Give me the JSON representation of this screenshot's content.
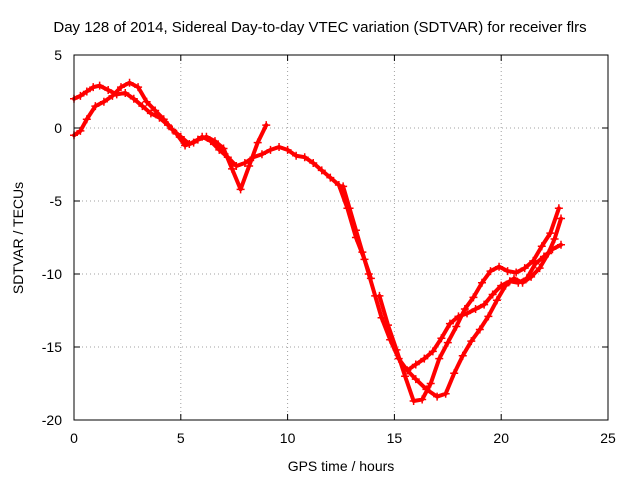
{
  "chart_data": {
    "type": "scatter",
    "title": "Day 128 of 2014, Sidereal Day-to-day VTEC variation (SDTVAR) for receiver flrs",
    "xlabel": "GPS time / hours",
    "ylabel": "SDTVAR / TECUs",
    "xlim": [
      0,
      25
    ],
    "ylim": [
      -20,
      5
    ],
    "xticks": [
      0,
      5,
      10,
      15,
      20,
      25
    ],
    "yticks": [
      5,
      0,
      -5,
      -10,
      -15,
      -20
    ],
    "grid": true,
    "marker": "+",
    "series": [
      {
        "name": "SDTVAR track A",
        "color": "#ff0000",
        "x": [
          0.0,
          0.3,
          0.6,
          0.9,
          1.2,
          1.6,
          2.0,
          2.4,
          2.8,
          3.2,
          3.6,
          4.0,
          4.4,
          4.8,
          5.2,
          5.6,
          6.0,
          6.4,
          6.8,
          7.2,
          7.6,
          8.0,
          8.4,
          8.8,
          9.2,
          9.6,
          10.0,
          10.4,
          10.8,
          11.2,
          11.6,
          12.0,
          12.4,
          12.8,
          13.2,
          13.6,
          13.9
        ],
        "y": [
          2.0,
          2.2,
          2.5,
          2.8,
          2.9,
          2.6,
          2.3,
          2.4,
          2.0,
          1.5,
          1.0,
          0.7,
          0.2,
          -0.4,
          -1.2,
          -1.0,
          -0.6,
          -0.9,
          -1.5,
          -2.0,
          -2.6,
          -2.4,
          -2.0,
          -1.8,
          -1.5,
          -1.3,
          -1.5,
          -1.9,
          -2.0,
          -2.4,
          -2.9,
          -3.4,
          -3.9,
          -5.5,
          -7.5,
          -9.0,
          -10.3
        ]
      },
      {
        "name": "SDTVAR track B",
        "color": "#ff0000",
        "x": [
          0.0,
          0.3,
          0.6,
          1.0,
          1.4,
          1.8,
          2.2,
          2.6,
          3.0,
          3.4,
          3.8,
          4.2,
          4.6,
          5.0,
          5.4,
          5.8,
          6.2,
          6.6,
          7.0,
          7.4,
          7.8,
          8.2,
          8.6,
          9.0
        ],
        "y": [
          -0.5,
          -0.2,
          0.6,
          1.5,
          1.8,
          2.2,
          2.8,
          3.1,
          2.8,
          1.8,
          1.2,
          0.6,
          -0.1,
          -0.6,
          -1.1,
          -0.8,
          -0.6,
          -0.9,
          -1.4,
          -2.8,
          -4.2,
          -2.6,
          -1.0,
          0.2
        ]
      },
      {
        "name": "SDTVAR track C",
        "color": "#ff0000",
        "x": [
          12.6,
          12.9,
          13.2,
          13.5,
          13.8,
          14.1,
          14.4,
          14.8,
          15.2,
          15.6,
          16.0,
          16.5,
          17.0,
          17.4,
          17.8,
          18.2,
          18.6,
          19.0,
          19.4,
          19.8,
          20.2,
          20.6,
          21.0,
          21.4,
          21.8,
          22.2,
          22.5,
          22.8
        ],
        "y": [
          -4.0,
          -5.5,
          -7.0,
          -8.5,
          -10.0,
          -11.5,
          -13.0,
          -14.5,
          -15.8,
          -16.6,
          -17.2,
          -17.9,
          -18.4,
          -18.2,
          -16.8,
          -15.6,
          -14.6,
          -13.8,
          -12.9,
          -11.8,
          -10.8,
          -10.3,
          -10.6,
          -10.2,
          -9.6,
          -8.6,
          -7.6,
          -6.2
        ]
      },
      {
        "name": "SDTVAR track D",
        "color": "#ff0000",
        "x": [
          14.3,
          14.7,
          15.1,
          15.5,
          15.9,
          16.3,
          16.7,
          17.1,
          17.5,
          17.9,
          18.3,
          18.7,
          19.1,
          19.5,
          19.9,
          20.3,
          20.7,
          21.1,
          21.5,
          21.9,
          22.3,
          22.7
        ],
        "y": [
          -11.5,
          -13.5,
          -15.2,
          -17.0,
          -18.7,
          -18.6,
          -17.5,
          -15.8,
          -14.7,
          -13.6,
          -12.4,
          -11.6,
          -10.6,
          -9.8,
          -9.5,
          -9.8,
          -9.9,
          -9.6,
          -9.1,
          -8.1,
          -7.2,
          -5.5
        ]
      },
      {
        "name": "SDTVAR track E",
        "color": "#ff0000",
        "x": [
          15.6,
          16.0,
          16.4,
          16.8,
          17.2,
          17.6,
          18.0,
          18.4,
          18.8,
          19.2,
          19.6,
          20.0,
          20.4,
          20.8,
          21.2,
          21.6,
          22.0,
          22.4,
          22.8
        ],
        "y": [
          -16.6,
          -16.2,
          -15.8,
          -15.3,
          -14.4,
          -13.4,
          -12.9,
          -12.7,
          -12.4,
          -12.1,
          -11.4,
          -10.8,
          -10.5,
          -10.6,
          -10.3,
          -9.3,
          -8.8,
          -8.3,
          -8.0
        ]
      }
    ]
  }
}
